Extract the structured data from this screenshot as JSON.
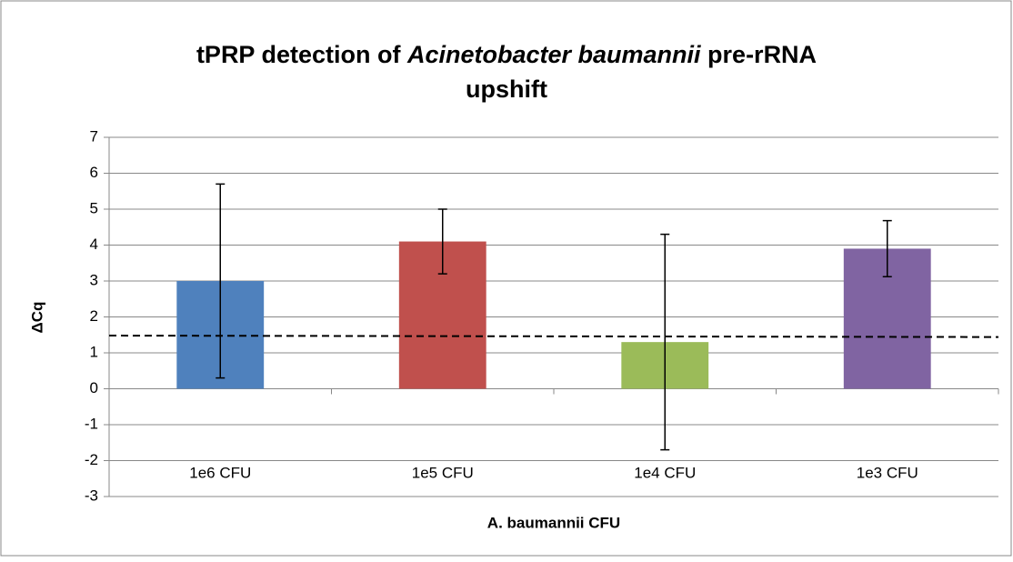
{
  "chart_data": {
    "type": "bar",
    "title": {
      "line1": [
        "tPRP detection of ",
        "Acinetobacter baumannii",
        " pre-rRNA"
      ],
      "line2": "upshift"
    },
    "xlabel": "A. baumannii CFU",
    "ylabel": "ΔCq",
    "categories": [
      "1e6 CFU",
      "1e5 CFU",
      "1e4 CFU",
      "1e3 CFU"
    ],
    "values": [
      3.0,
      4.1,
      1.3,
      3.9
    ],
    "errors": [
      2.7,
      0.9,
      3.0,
      0.78
    ],
    "colors": [
      "#4f81bd",
      "#c0504d",
      "#9bbb59",
      "#8064a2"
    ],
    "threshold": [
      1.48,
      1.44
    ],
    "ylim": [
      -3,
      7
    ],
    "yticks": [
      -3,
      -2,
      -1,
      0,
      1,
      2,
      3,
      4,
      5,
      6,
      7
    ],
    "grid": true
  }
}
